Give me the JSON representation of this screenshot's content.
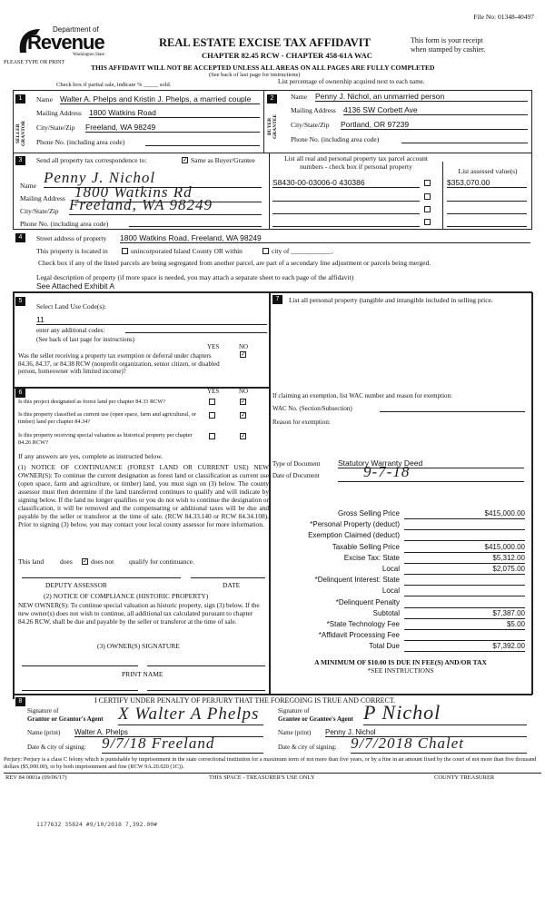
{
  "header": {
    "file_no": "File No: 01348-40497",
    "logo_dept": "Department of",
    "logo_name": "Revenue",
    "logo_state": "Washington State",
    "type_print": "PLEASE TYPE OR PRINT",
    "title": "REAL ESTATE EXCISE TAX AFFIDAVIT",
    "chapter": "CHAPTER 82.45 RCW - CHAPTER 458-61A WAC",
    "receipt1": "This form is your receipt",
    "receipt2": "when stamped by cashier.",
    "warning": "THIS AFFIDAVIT WILL NOT BE ACCEPTED UNLESS ALL AREAS ON ALL PAGES ARE FULLY COMPLETED",
    "see_back": "(See back of last page for instructions)",
    "partial_sale": "Check box if partial sale, indicate % _____ sold.",
    "list_pct": "List percentage of ownership acquired next to each name."
  },
  "seller": {
    "num": "1",
    "side": "SELLER GRANTOR",
    "name_label": "Name",
    "name": "Walter A. Phelps and Kristin J. Phelps, a married couple",
    "addr_label": "Mailing Address",
    "addr": "1800 Watkins Road",
    "city_label": "City/State/Zip",
    "city": "Freeland, WA 98249",
    "phone_label": "Phone No. (including area code)"
  },
  "buyer": {
    "num": "2",
    "side": "BUYER GRANTEE",
    "name_label": "Name",
    "name": "Penny J. Nichol, an unmarried person",
    "addr_label": "Mailing Address",
    "addr": "4136 SW Corbett Ave",
    "city_label": "City/State/Zip",
    "city": "Portland, OR 97239",
    "phone_label": "Phone No. (including area code)"
  },
  "correspondence": {
    "num": "3",
    "label": "Send all property tax correspondence to:",
    "same_as": "Same as Buyer/Grantee",
    "same_checked": true,
    "name_label": "Name",
    "name": "Penny J. Nichol",
    "addr_label": "Mailing Address",
    "addr": "1800 Watkins Rd",
    "city_label": "City/State/Zip",
    "city": "Freeland, WA 98249",
    "phone_label": "Phone No. (including area code)"
  },
  "parcels": {
    "header1": "List all real and personal property tax parcel account",
    "header2": "numbers - check box if personal property",
    "assessed_header": "List assessed value(s)",
    "rows": [
      {
        "parcel": "S8430-00-03006-0  430386",
        "assessed": "$353,070.00"
      },
      {
        "parcel": "",
        "assessed": ""
      },
      {
        "parcel": "",
        "assessed": ""
      },
      {
        "parcel": "",
        "assessed": ""
      }
    ]
  },
  "property": {
    "num": "4",
    "street_label": "Street address of property",
    "street": "1800 Watkins Road, Freeland, WA 98249",
    "located": "This property is located in",
    "unincorporated": "unincorporated Island County OR within",
    "city_of": "city of ____________.",
    "segregated": "Check box if any of the listed parcels are being segregated from another parcel, are part of a secondary line adjustment or parcels being merged.",
    "legal_label": "Legal description of property (if more space is needed, you may attach a separate sheet to each page of the affidavit)",
    "legal": "See Attached Exhibit A"
  },
  "land_use": {
    "num": "5",
    "label": "Select Land Use Code(s):",
    "code": "11",
    "additional": "enter any additional codes:",
    "see_back": "(See back of last page for instructions)",
    "yes": "YES",
    "no": "NO",
    "exemption_q": "Was the seller receiving a property tax exemption or deferral under chapters 84.36, 84.37, or 84.38 RCW (nonprofit organization, senior citizen, or disabled person, homeowner with limited income)?",
    "exemption_answer": "NO"
  },
  "sec6": {
    "num": "6",
    "yes": "YES",
    "no": "NO",
    "questions": [
      {
        "q": "Is this project designated as forest land per chapter 84.33 RCW?",
        "answer": "NO"
      },
      {
        "q": "Is this property classified as current use (open space, farm and agricultural, or timber) land per chapter 84.34?",
        "answer": "NO"
      },
      {
        "q": "Is this property receiving special valuation as historical property per chapter 84.26 RCW?",
        "answer": "NO"
      }
    ],
    "if_yes": "If any answers are yes, complete as instructed below.",
    "notice1": "(1) NOTICE OF CONTINUANCE (FOREST LAND OR CURRENT USE) NEW OWNER(S): To continue the current designation as forest land or classification as current use (open space, farm and agriculture, or timber) land, you must sign on (3) below. The county assessor must then determine if the land transferred continues to qualify and will indicate by signing below. If the land no longer qualifies or you do not wish to continue the designation or classification, it will be removed and the compensating or additional taxes will be due and payable by the seller or transferor at the time of sale. (RCW 84.33.140 or RCW 84.34.108). Prior to signing (3) below, you may contact your local county assessor for more information.",
    "this_land": "This land",
    "does": "does",
    "does_not": "does not",
    "qualify": "qualify for continuance.",
    "deputy": "DEPUTY ASSESSOR",
    "date": "DATE",
    "notice2_title": "(2) NOTICE OF COMPLIANCE (HISTORIC PROPERTY)",
    "notice2": "NEW OWNER(S): To continue special valuation as historic property, sign (3) below. If the new owner(s) does not wish to continue, all additional tax calculated pursuant to chapter 84.26 RCW, shall be due and payable by the seller or transferor at the time of sale.",
    "owner_sig": "(3) OWNER(S) SIGNATURE",
    "print_name": "PRINT NAME"
  },
  "sec7": {
    "num": "7",
    "label": "List all personal property (tangible and intangible included in selling price.",
    "exemption": "If claiming an exemption, list WAC number and reason for exemption:",
    "wac_label": "WAC No. (Section/Subsection)",
    "reason_label": "Reason for exemption:",
    "doc_type_label": "Type of Document",
    "doc_type": "Statutory Warranty Deed",
    "doc_date_label": "Date of Document",
    "doc_date": "9-7-18"
  },
  "prices": [
    {
      "label": "Gross Selling Price",
      "value": "$415,000.00"
    },
    {
      "label": "*Personal Property (deduct)",
      "value": ""
    },
    {
      "label": "Exemption Claimed (deduct)",
      "value": ""
    },
    {
      "label": "Taxable Selling Price",
      "value": "$415,000.00"
    },
    {
      "label": "Excise Tax:  State",
      "value": "$5,312.00"
    },
    {
      "label": "Local",
      "value": "$2,075.00"
    },
    {
      "label": "*Delinquent Interest:  State",
      "value": ""
    },
    {
      "label": "Local",
      "value": ""
    },
    {
      "label": "*Delinquent Penalty",
      "value": ""
    },
    {
      "label": "Subtotal",
      "value": "$7,387.00"
    },
    {
      "label": "*State Technology Fee",
      "value": "$5.00"
    },
    {
      "label": "*Affidavit Processing Fee",
      "value": ""
    },
    {
      "label": "Total Due",
      "value": "$7,392.00"
    }
  ],
  "minimum": "A MINIMUM OF $10.00 IS DUE IN FEE(S) AND/OR TAX",
  "see_instr": "*SEE INSTRUCTIONS",
  "sec8": {
    "num": "8",
    "certify": "I CERTIFY UNDER PENALTY OF PERJURY THAT THE FOREGOING IS TRUE AND CORRECT.",
    "sig_of": "Signature of",
    "grantor_agent": "Grantor or Grantor's Agent",
    "grantee_agent": "Grantee or Grantee's Agent",
    "name_print": "Name (print)",
    "grantor_name": "Walter A. Phelps",
    "grantee_name": "Penny J. Nichol",
    "date_city": "Date & city of signing:",
    "grantor_date": "9/7/18 Freeland",
    "grantee_date": "9/7/2018 Chalet",
    "grantor_sig": "X Walter A Phelps",
    "grantee_sig": "P Nichol"
  },
  "footer": {
    "perjury": "Perjury: Perjury is a class C felony which is punishable by imprisonment in the state correctional institution for a maximum term of not more than five years, or by a fine in an amount fixed by the court of not more than five thousand dollars ($5,000.00), or by both imprisonment and fine (RCW 9A.20.020 (1C)).",
    "rev": "REV 84 0001a (09/06/17)",
    "treasurer_space": "THIS SPACE - TREASURER'S USE ONLY",
    "county_treasurer": "COUNTY TREASURER",
    "stamp": "1177632 35824 #9/10/2018 7,392.00#"
  }
}
